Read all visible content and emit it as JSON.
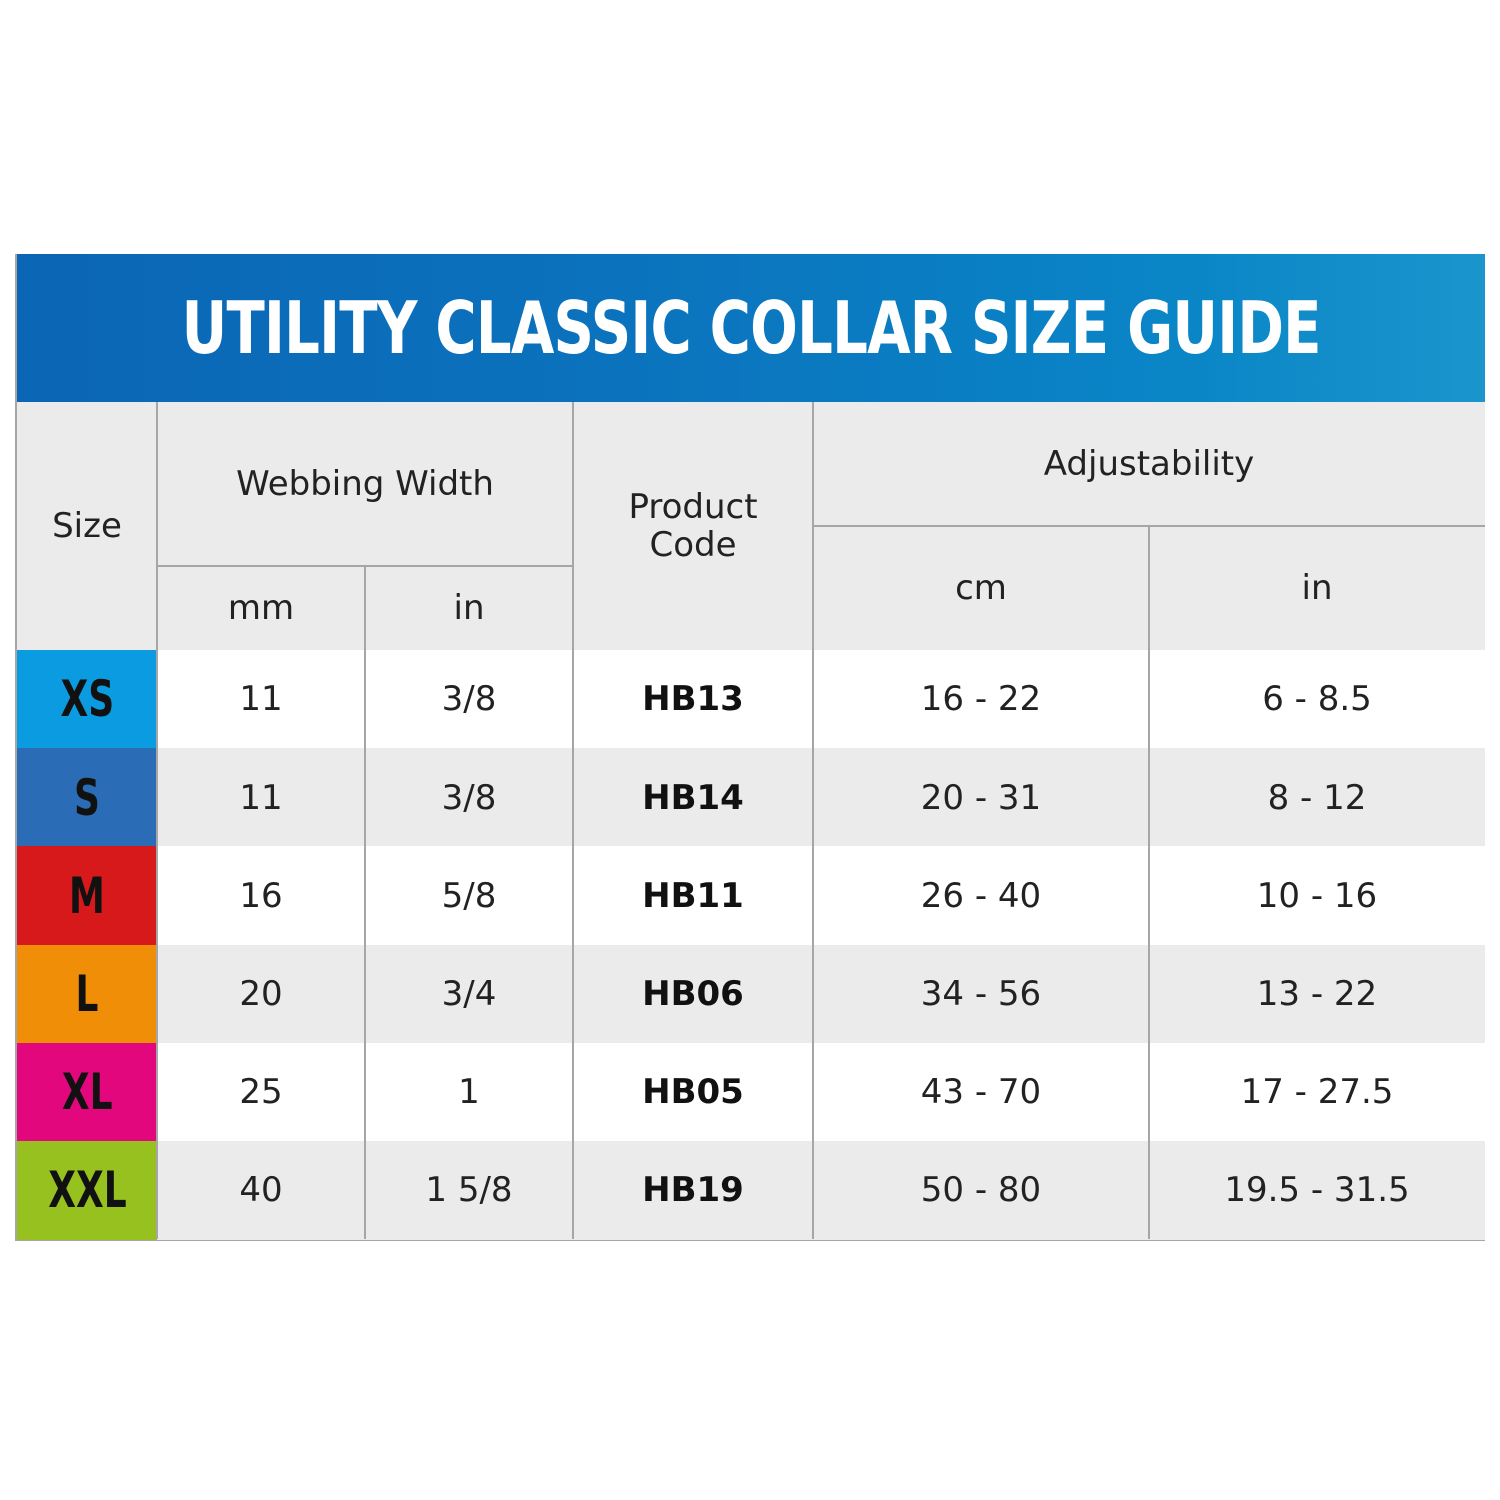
{
  "title": "UTILITY CLASSIC COLLAR SIZE GUIDE",
  "headers": {
    "size": "Size",
    "webbing_width": "Webbing Width",
    "mm": "mm",
    "in": "in",
    "product_code_line1": "Product",
    "product_code_line2": "Code",
    "adjustability": "Adjustability",
    "cm": "cm",
    "adj_in": "in"
  },
  "rows": [
    {
      "size": "XS",
      "color": "#0a9be0",
      "mm": "11",
      "in": "3/8",
      "code": "HB13",
      "cm": "16 - 22",
      "adj_in": "6 - 8.5"
    },
    {
      "size": "S",
      "color": "#2a6cb6",
      "mm": "11",
      "in": "3/8",
      "code": "HB14",
      "cm": "20 - 31",
      "adj_in": "8 - 12"
    },
    {
      "size": "M",
      "color": "#d7191b",
      "mm": "16",
      "in": "5/8",
      "code": "HB11",
      "cm": "26 - 40",
      "adj_in": "10 - 16"
    },
    {
      "size": "L",
      "color": "#f18e07",
      "mm": "20",
      "in": "3/4",
      "code": "HB06",
      "cm": "34 - 56",
      "adj_in": "13 - 22"
    },
    {
      "size": "XL",
      "color": "#e2077d",
      "mm": "25",
      "in": "1",
      "code": "HB05",
      "cm": "43 - 70",
      "adj_in": "17 - 27.5"
    },
    {
      "size": "XXL",
      "color": "#97c11f",
      "mm": "40",
      "in": "1 5/8",
      "code": "HB19",
      "cm": "50 - 80",
      "adj_in": "19.5 - 31.5"
    }
  ]
}
